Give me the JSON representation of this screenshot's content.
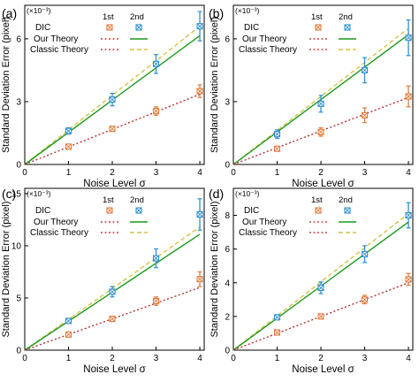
{
  "figure": {
    "ylabel": "Standard Deviation Error (pixel)",
    "xlabel": "Noise Level σ",
    "multiplier": "(×10⁻³)",
    "legend": {
      "dic_label": "DIC",
      "col1": "1st",
      "col2": "2nd",
      "our_theory": "Our Theory",
      "classic_theory": "Classic Theory"
    },
    "colors": {
      "first_order": "#e07b39",
      "second_order": "#2f8fcf",
      "our_theory_first": "#b22222",
      "our_theory_second": "#1a9a1a",
      "classic_theory_second": "#d6c24a"
    }
  },
  "chart_data": [
    {
      "panel": "(a)",
      "type": "scatter",
      "xlim": [
        0,
        4.1
      ],
      "ylim": [
        0,
        7.6
      ],
      "xticks": [
        "0",
        "1",
        "2",
        "3",
        "4"
      ],
      "yticks": [
        "0",
        "3",
        "6"
      ],
      "series": [
        {
          "name": "1st",
          "x": [
            1,
            2,
            3,
            4
          ],
          "y": [
            0.85,
            1.7,
            2.55,
            3.5
          ],
          "err": [
            0.08,
            0.12,
            0.2,
            0.3
          ]
        },
        {
          "name": "2nd",
          "x": [
            1,
            2,
            3,
            4
          ],
          "y": [
            1.6,
            3.1,
            4.8,
            6.6
          ],
          "err": [
            0.15,
            0.3,
            0.45,
            0.7
          ]
        }
      ],
      "theory_lines": {
        "our_first": 3.35,
        "classic_first": 3.35,
        "our_second": 6.15,
        "classic_second": 6.6
      }
    },
    {
      "panel": "(b)",
      "type": "scatter",
      "xlim": [
        0,
        4.1
      ],
      "ylim": [
        0,
        7.6
      ],
      "xticks": [
        "0",
        "1",
        "2",
        "3",
        "4"
      ],
      "yticks": [
        "0",
        "3",
        "6"
      ],
      "series": [
        {
          "name": "1st",
          "x": [
            1,
            2,
            3,
            4
          ],
          "y": [
            0.75,
            1.55,
            2.35,
            3.25
          ],
          "err": [
            0.1,
            0.2,
            0.35,
            0.5
          ]
        },
        {
          "name": "2nd",
          "x": [
            1,
            2,
            3,
            4
          ],
          "y": [
            1.45,
            2.9,
            4.5,
            6.05
          ],
          "err": [
            0.2,
            0.4,
            0.6,
            0.85
          ]
        }
      ],
      "theory_lines": {
        "our_first": 3.2,
        "classic_first": 3.2,
        "our_second": 6.2,
        "classic_second": 6.5
      }
    },
    {
      "panel": "(c)",
      "type": "scatter",
      "xlim": [
        0,
        4.1
      ],
      "ylim": [
        0,
        15.5
      ],
      "xticks": [
        "0",
        "1",
        "2",
        "3",
        "4"
      ],
      "yticks": [
        "0",
        "5",
        "10",
        "15"
      ],
      "series": [
        {
          "name": "1st",
          "x": [
            1,
            2,
            3,
            4
          ],
          "y": [
            1.5,
            3.0,
            4.7,
            6.8
          ],
          "err": [
            0.15,
            0.25,
            0.4,
            0.7
          ]
        },
        {
          "name": "2nd",
          "x": [
            1,
            2,
            3,
            4
          ],
          "y": [
            2.8,
            5.6,
            8.8,
            13.0
          ],
          "err": [
            0.2,
            0.5,
            0.9,
            1.5
          ]
        }
      ],
      "theory_lines": {
        "our_first": 6.0,
        "classic_first": 6.0,
        "our_second": 11.1,
        "classic_second": 11.8
      }
    },
    {
      "panel": "(d)",
      "type": "scatter",
      "xlim": [
        0,
        4.1
      ],
      "ylim": [
        0,
        9.6
      ],
      "xticks": [
        "0",
        "1",
        "2",
        "3",
        "4"
      ],
      "yticks": [
        "0",
        "2",
        "4",
        "6",
        "8"
      ],
      "series": [
        {
          "name": "1st",
          "x": [
            1,
            2,
            3,
            4
          ],
          "y": [
            1.05,
            2.0,
            3.0,
            4.2
          ],
          "err": [
            0.1,
            0.15,
            0.25,
            0.35
          ]
        },
        {
          "name": "2nd",
          "x": [
            1,
            2,
            3,
            4
          ],
          "y": [
            1.95,
            3.7,
            5.7,
            8.0
          ],
          "err": [
            0.15,
            0.35,
            0.5,
            0.75
          ]
        }
      ],
      "theory_lines": {
        "our_first": 4.0,
        "classic_first": 4.0,
        "our_second": 7.6,
        "classic_second": 8.1
      }
    }
  ]
}
